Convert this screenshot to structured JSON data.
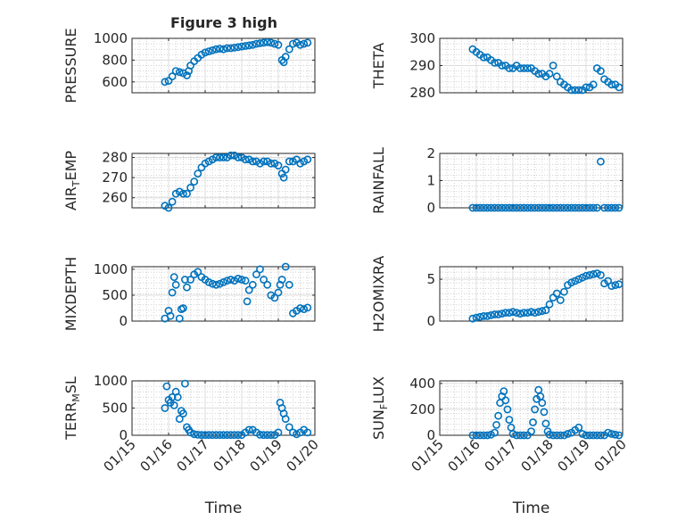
{
  "figure_title": "Figure 3 high",
  "chart_data": [
    {
      "id": "pressure",
      "type": "scatter",
      "title": "Figure 3 high",
      "ylabel": {
        "main": "PRESSURE",
        "sub": ""
      },
      "xlabel": "",
      "xlim": [
        0,
        5
      ],
      "ylim": [
        500,
        1000
      ],
      "yticks": [
        600,
        800,
        1000
      ],
      "xticks": [],
      "grid": true,
      "x": [
        0.9,
        1.0,
        1.1,
        1.2,
        1.3,
        1.4,
        1.5,
        1.55,
        1.6,
        1.7,
        1.8,
        1.9,
        2.0,
        2.1,
        2.2,
        2.3,
        2.4,
        2.5,
        2.6,
        2.7,
        2.8,
        2.9,
        3.0,
        3.1,
        3.2,
        3.3,
        3.4,
        3.5,
        3.6,
        3.7,
        3.8,
        3.9,
        4.0,
        4.1,
        4.15,
        4.2,
        4.3,
        4.4,
        4.5,
        4.6,
        4.7,
        4.8
      ],
      "y": [
        600,
        610,
        650,
        700,
        690,
        680,
        660,
        700,
        750,
        790,
        820,
        850,
        870,
        880,
        890,
        900,
        905,
        900,
        910,
        910,
        915,
        920,
        925,
        930,
        935,
        940,
        950,
        955,
        960,
        965,
        960,
        950,
        940,
        800,
        780,
        830,
        900,
        950,
        960,
        940,
        950,
        960
      ]
    },
    {
      "id": "theta",
      "type": "scatter",
      "ylabel": {
        "main": "THETA",
        "sub": ""
      },
      "xlabel": "",
      "xlim": [
        0,
        5
      ],
      "ylim": [
        280,
        300
      ],
      "yticks": [
        280,
        290,
        300
      ],
      "xticks": [],
      "grid": true,
      "x": [
        0.9,
        1.0,
        1.1,
        1.2,
        1.3,
        1.4,
        1.5,
        1.6,
        1.7,
        1.8,
        1.9,
        2.0,
        2.1,
        2.2,
        2.3,
        2.4,
        2.5,
        2.6,
        2.7,
        2.8,
        2.9,
        3.0,
        3.1,
        3.2,
        3.3,
        3.4,
        3.5,
        3.6,
        3.7,
        3.8,
        3.9,
        4.0,
        4.1,
        4.2,
        4.3,
        4.4,
        4.5,
        4.6,
        4.7,
        4.8,
        4.9
      ],
      "y": [
        296,
        295,
        294,
        293,
        293,
        292,
        291,
        291,
        290,
        290,
        289,
        289,
        290,
        289,
        289,
        289,
        289,
        288,
        287,
        287,
        286,
        287,
        290,
        286,
        284,
        283,
        282,
        281,
        281,
        281,
        281,
        282,
        282,
        283,
        289,
        288,
        285,
        284,
        283,
        283,
        282
      ]
    },
    {
      "id": "air_temp",
      "type": "scatter",
      "ylabel": {
        "main": "AIR",
        "sub": "T",
        "rest": "EMP"
      },
      "xlabel": "",
      "xlim": [
        0,
        5
      ],
      "ylim": [
        255,
        282
      ],
      "yticks": [
        260,
        270,
        280
      ],
      "xticks": [],
      "grid": true,
      "x": [
        0.9,
        1.0,
        1.1,
        1.2,
        1.3,
        1.4,
        1.5,
        1.6,
        1.7,
        1.8,
        1.9,
        2.0,
        2.1,
        2.2,
        2.3,
        2.4,
        2.5,
        2.6,
        2.7,
        2.8,
        2.9,
        3.0,
        3.1,
        3.2,
        3.3,
        3.4,
        3.5,
        3.6,
        3.7,
        3.8,
        3.9,
        4.0,
        4.1,
        4.15,
        4.2,
        4.3,
        4.4,
        4.5,
        4.6,
        4.7,
        4.8
      ],
      "y": [
        256,
        255,
        258,
        262,
        263,
        262,
        262,
        265,
        268,
        272,
        275,
        277,
        278,
        279,
        280,
        280,
        280,
        280,
        281,
        281,
        280,
        280,
        279,
        279,
        278,
        278,
        277,
        278,
        278,
        277,
        277,
        276,
        272,
        270,
        274,
        278,
        278,
        279,
        277,
        278,
        279
      ]
    },
    {
      "id": "rainfall",
      "type": "scatter",
      "ylabel": {
        "main": "RAINFALL",
        "sub": ""
      },
      "xlabel": "",
      "xlim": [
        0,
        5
      ],
      "ylim": [
        0,
        2
      ],
      "yticks": [
        0,
        1,
        2
      ],
      "xticks": [],
      "grid": true,
      "x": [
        0.9,
        1.0,
        1.1,
        1.2,
        1.3,
        1.4,
        1.5,
        1.6,
        1.7,
        1.8,
        1.9,
        2.0,
        2.1,
        2.2,
        2.3,
        2.4,
        2.5,
        2.6,
        2.7,
        2.8,
        2.9,
        3.0,
        3.1,
        3.2,
        3.3,
        3.4,
        3.5,
        3.6,
        3.7,
        3.8,
        3.9,
        4.0,
        4.1,
        4.2,
        4.3,
        4.4,
        4.5,
        4.6,
        4.7,
        4.8,
        4.9
      ],
      "y": [
        0,
        0,
        0,
        0,
        0,
        0,
        0,
        0,
        0,
        0,
        0,
        0,
        0,
        0,
        0,
        0,
        0,
        0,
        0,
        0,
        0,
        0,
        0,
        0,
        0,
        0,
        0,
        0,
        0,
        0,
        0,
        0,
        0,
        0,
        0,
        1.7,
        0,
        0,
        0,
        0,
        0
      ]
    },
    {
      "id": "mixdepth",
      "type": "scatter",
      "ylabel": {
        "main": "MIXDEPTH",
        "sub": ""
      },
      "xlabel": "",
      "xlim": [
        0,
        5
      ],
      "ylim": [
        0,
        1050
      ],
      "yticks": [
        0,
        500,
        1000
      ],
      "xticks": [],
      "grid": true,
      "x": [
        0.9,
        1.0,
        1.05,
        1.1,
        1.15,
        1.2,
        1.3,
        1.35,
        1.4,
        1.45,
        1.5,
        1.6,
        1.7,
        1.8,
        1.9,
        2.0,
        2.1,
        2.2,
        2.3,
        2.4,
        2.5,
        2.6,
        2.7,
        2.8,
        2.9,
        3.0,
        3.1,
        3.15,
        3.2,
        3.3,
        3.4,
        3.5,
        3.6,
        3.7,
        3.8,
        3.9,
        4.0,
        4.05,
        4.1,
        4.2,
        4.3,
        4.4,
        4.5,
        4.6,
        4.7,
        4.8
      ],
      "y": [
        50,
        200,
        100,
        550,
        850,
        700,
        50,
        230,
        250,
        800,
        650,
        800,
        900,
        950,
        850,
        800,
        750,
        720,
        700,
        720,
        750,
        780,
        800,
        780,
        820,
        800,
        780,
        380,
        600,
        700,
        900,
        1000,
        800,
        700,
        500,
        450,
        550,
        700,
        800,
        1050,
        700,
        150,
        200,
        250,
        230,
        260
      ]
    },
    {
      "id": "h2omixra",
      "type": "scatter",
      "ylabel": {
        "main": "H2OMIXRA",
        "sub": ""
      },
      "xlabel": "",
      "xlim": [
        0,
        5
      ],
      "ylim": [
        0,
        6.5
      ],
      "yticks": [
        0,
        5
      ],
      "xticks": [],
      "grid": true,
      "x": [
        0.9,
        1.0,
        1.1,
        1.2,
        1.3,
        1.4,
        1.5,
        1.6,
        1.7,
        1.8,
        1.9,
        2.0,
        2.1,
        2.2,
        2.3,
        2.4,
        2.5,
        2.6,
        2.7,
        2.8,
        2.9,
        3.0,
        3.1,
        3.2,
        3.3,
        3.4,
        3.5,
        3.6,
        3.7,
        3.8,
        3.9,
        4.0,
        4.1,
        4.2,
        4.3,
        4.4,
        4.5,
        4.6,
        4.7,
        4.8,
        4.9
      ],
      "y": [
        0.3,
        0.4,
        0.5,
        0.6,
        0.6,
        0.7,
        0.8,
        0.8,
        0.9,
        1.0,
        1.0,
        1.1,
        1.0,
        0.9,
        1.0,
        1.0,
        1.1,
        1.0,
        1.1,
        1.2,
        1.3,
        2.0,
        2.8,
        3.3,
        2.5,
        3.5,
        4.3,
        4.6,
        4.8,
        5.0,
        5.2,
        5.4,
        5.5,
        5.6,
        5.7,
        5.5,
        4.5,
        4.8,
        4.2,
        4.3,
        4.4
      ]
    },
    {
      "id": "terr_msl",
      "type": "scatter",
      "ylabel": {
        "main": "TERR",
        "sub": "M",
        "rest": "SL"
      },
      "xlabel": "Time",
      "xlim": [
        0,
        5
      ],
      "ylim": [
        0,
        1000
      ],
      "yticks": [
        0,
        500,
        1000
      ],
      "grid": true,
      "xticks": [
        0,
        1,
        2,
        3,
        4,
        5
      ],
      "xtick_labels": [
        "01/15",
        "01/16",
        "01/17",
        "01/18",
        "01/19",
        "01/20"
      ],
      "x": [
        0.9,
        0.95,
        1.0,
        1.05,
        1.1,
        1.15,
        1.2,
        1.25,
        1.3,
        1.35,
        1.4,
        1.45,
        1.5,
        1.55,
        1.6,
        1.7,
        1.8,
        1.9,
        2.0,
        2.1,
        2.2,
        2.3,
        2.4,
        2.5,
        2.6,
        2.7,
        2.8,
        2.9,
        3.0,
        3.1,
        3.2,
        3.3,
        3.4,
        3.5,
        3.6,
        3.7,
        3.8,
        3.9,
        4.0,
        4.05,
        4.1,
        4.15,
        4.2,
        4.3,
        4.4,
        4.5,
        4.6,
        4.7,
        4.8
      ],
      "y": [
        500,
        900,
        650,
        600,
        700,
        550,
        800,
        700,
        300,
        450,
        400,
        950,
        150,
        100,
        50,
        20,
        10,
        5,
        5,
        5,
        5,
        5,
        5,
        5,
        5,
        5,
        5,
        5,
        5,
        50,
        100,
        100,
        50,
        10,
        5,
        5,
        5,
        5,
        50,
        600,
        500,
        400,
        300,
        150,
        50,
        20,
        50,
        100,
        50
      ]
    },
    {
      "id": "sun_flux",
      "type": "scatter",
      "ylabel": {
        "main": "SUN",
        "sub": "F",
        "rest": "LUX"
      },
      "xlabel": "Time",
      "xlim": [
        0,
        5
      ],
      "ylim": [
        0,
        420
      ],
      "yticks": [
        0,
        200,
        400
      ],
      "grid": true,
      "xticks": [
        0,
        1,
        2,
        3,
        4,
        5
      ],
      "xtick_labels": [
        "01/15",
        "01/16",
        "01/17",
        "01/18",
        "01/19",
        "01/20"
      ],
      "x": [
        0.9,
        1.0,
        1.1,
        1.2,
        1.3,
        1.4,
        1.5,
        1.55,
        1.6,
        1.65,
        1.7,
        1.75,
        1.8,
        1.85,
        1.9,
        1.95,
        2.0,
        2.1,
        2.2,
        2.3,
        2.4,
        2.5,
        2.55,
        2.6,
        2.65,
        2.7,
        2.75,
        2.8,
        2.85,
        2.9,
        2.95,
        3.0,
        3.1,
        3.2,
        3.3,
        3.4,
        3.5,
        3.6,
        3.7,
        3.8,
        3.9,
        4.0,
        4.1,
        4.2,
        4.3,
        4.4,
        4.5,
        4.6,
        4.7,
        4.8,
        4.9
      ],
      "y": [
        0,
        0,
        0,
        0,
        0,
        5,
        20,
        80,
        150,
        250,
        300,
        340,
        270,
        200,
        120,
        60,
        10,
        0,
        0,
        0,
        0,
        30,
        100,
        200,
        280,
        350,
        300,
        250,
        180,
        90,
        30,
        5,
        0,
        0,
        0,
        0,
        10,
        20,
        40,
        60,
        10,
        0,
        0,
        0,
        0,
        0,
        0,
        20,
        10,
        5,
        0
      ]
    }
  ]
}
